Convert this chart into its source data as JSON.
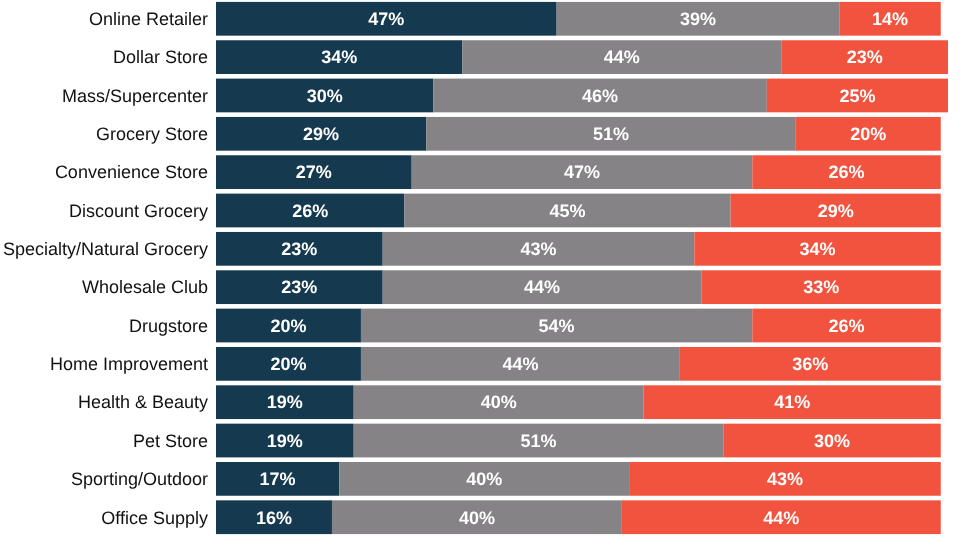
{
  "chart_data": {
    "type": "bar",
    "orientation": "horizontal",
    "stacked": true,
    "tick_labels": "y",
    "categories": [
      "Online Retailer",
      "Dollar Store",
      "Mass/Supercenter",
      "Grocery Store",
      "Convenience Store",
      "Discount Grocery",
      "Specialty/Natural Grocery",
      "Wholesale Club",
      "Drugstore",
      "Home Improvement",
      "Health & Beauty",
      "Pet Store",
      "Sporting/Outdoor",
      "Office Supply"
    ],
    "series": [
      {
        "color": "#15394f",
        "values": [
          47,
          34,
          30,
          29,
          27,
          26,
          23,
          23,
          20,
          20,
          19,
          19,
          17,
          16
        ],
        "value_labels": [
          "47%",
          "34%",
          "30%",
          "29%",
          "27%",
          "26%",
          "23%",
          "23%",
          "20%",
          "20%",
          "19%",
          "19%",
          "17%",
          "16%"
        ]
      },
      {
        "color": "#858385",
        "values": [
          39,
          44,
          46,
          51,
          47,
          45,
          43,
          44,
          54,
          44,
          40,
          51,
          40,
          40
        ],
        "value_labels": [
          "39%",
          "44%",
          "46%",
          "51%",
          "47%",
          "45%",
          "43%",
          "44%",
          "54%",
          "44%",
          "40%",
          "51%",
          "40%",
          "40%"
        ]
      },
      {
        "color": "#f2533e",
        "values": [
          14,
          23,
          25,
          20,
          26,
          29,
          34,
          33,
          26,
          36,
          41,
          30,
          43,
          44
        ],
        "value_labels": [
          "14%",
          "23%",
          "25%",
          "20%",
          "26%",
          "29%",
          "34%",
          "33%",
          "26%",
          "36%",
          "41%",
          "30%",
          "43%",
          "44%"
        ]
      }
    ]
  }
}
